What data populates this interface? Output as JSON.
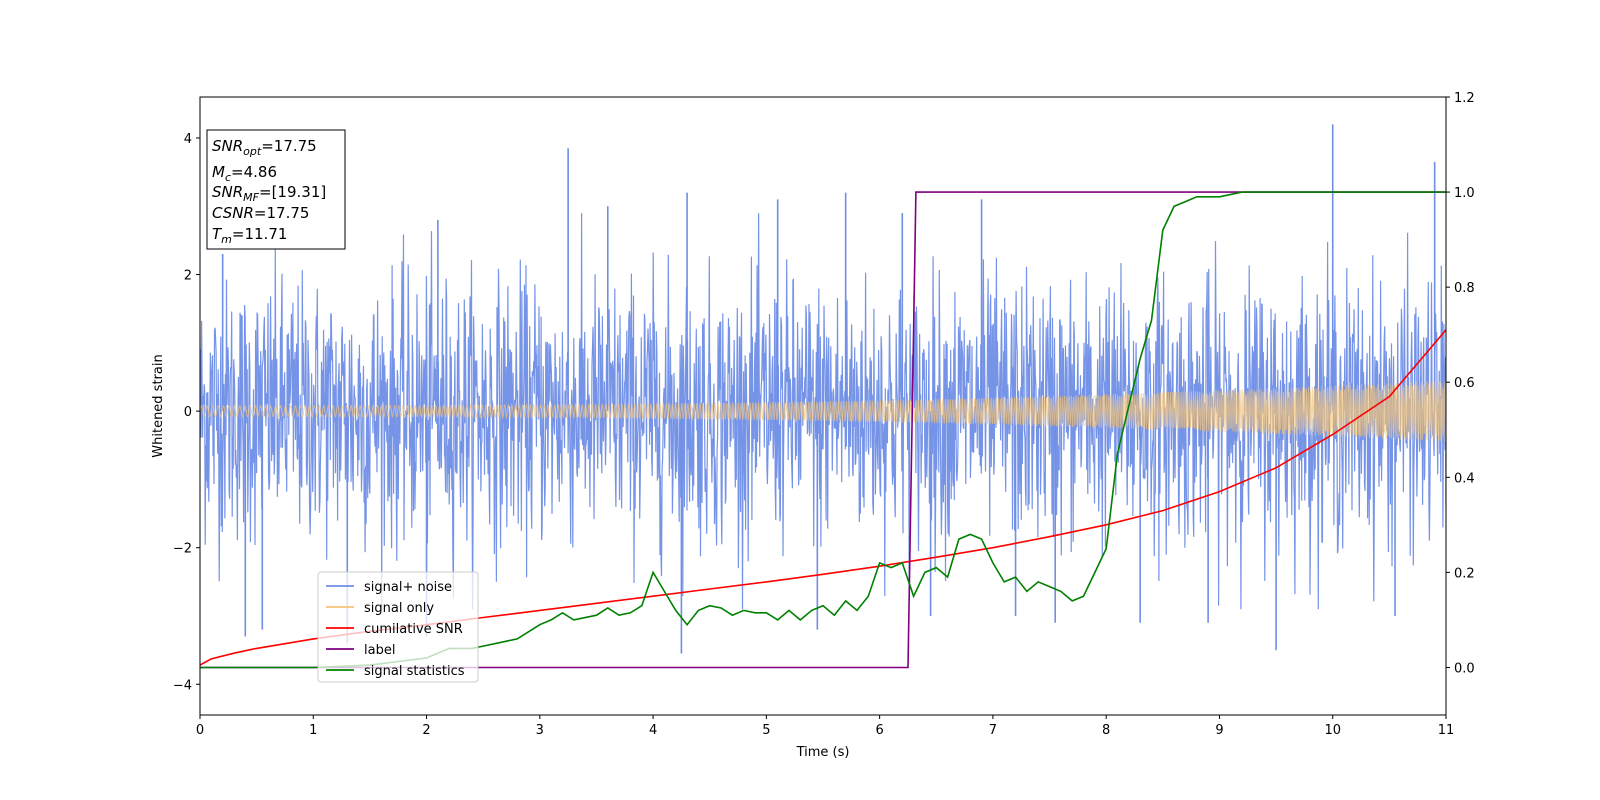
{
  "chart_data": {
    "type": "line",
    "xlabel": "Time (s)",
    "ylabel": "Whitened strain",
    "xlim": [
      0,
      11
    ],
    "ylim_left": [
      -4.45,
      4.6
    ],
    "ylim_right": [
      -0.1,
      1.2
    ],
    "x_ticks": [
      "0",
      "1",
      "2",
      "3",
      "4",
      "5",
      "6",
      "7",
      "8",
      "9",
      "10",
      "11"
    ],
    "y_left_ticks": [
      "−4",
      "−2",
      "0",
      "2",
      "4"
    ],
    "y_right_ticks": [
      "0.0",
      "0.2",
      "0.4",
      "0.6",
      "0.8",
      "1.0",
      "1.2"
    ],
    "info_box": {
      "snr_opt": {
        "base": "SNR",
        "sub": "opt",
        "value": "=17.75"
      },
      "mc": {
        "base": "M",
        "sub": "c",
        "value": "=4.86"
      },
      "snr_mf": {
        "base": "SNR",
        "sub": "MF",
        "value": "=[19.31]"
      },
      "csnr": {
        "base": "CSNR",
        "value": "=17.75"
      },
      "tm": {
        "base": "T",
        "sub": "m",
        "value": "=11.71"
      }
    },
    "legend": {
      "placement": "lower-left",
      "entries": [
        {
          "label": "signal+ noise",
          "color": "#6f8ee6"
        },
        {
          "label": "signal only",
          "color": "#f5c477"
        },
        {
          "label": "cumilative SNR",
          "color": "#ff0000"
        },
        {
          "label": "label",
          "color": "#800080"
        },
        {
          "label": "signal statistics",
          "color": "#008000"
        }
      ]
    },
    "series": [
      {
        "name": "signal+ noise",
        "axis": "left",
        "color": "#6f8ee6",
        "kind": "noise",
        "noise_sigma": 1.0,
        "spikes": [
          [
            0.2,
            2.3
          ],
          [
            0.4,
            -3.3
          ],
          [
            0.55,
            -3.2
          ],
          [
            1.3,
            -3.4
          ],
          [
            2.0,
            -3.3
          ],
          [
            2.1,
            2.8
          ],
          [
            3.25,
            3.85
          ],
          [
            3.6,
            3.0
          ],
          [
            4.25,
            -3.55
          ],
          [
            4.3,
            3.2
          ],
          [
            5.1,
            3.1
          ],
          [
            5.45,
            -3.2
          ],
          [
            5.7,
            3.2
          ],
          [
            6.2,
            2.9
          ],
          [
            6.45,
            -3.0
          ],
          [
            6.9,
            3.1
          ],
          [
            7.2,
            -3.0
          ],
          [
            7.55,
            -3.1
          ],
          [
            8.3,
            -3.1
          ],
          [
            8.9,
            -3.1
          ],
          [
            9.5,
            -3.5
          ],
          [
            10.0,
            4.2
          ],
          [
            10.55,
            -3.0
          ],
          [
            10.9,
            3.65
          ]
        ]
      },
      {
        "name": "signal only",
        "axis": "left",
        "color": "#f5c477",
        "kind": "chirp",
        "amplitude_start": 0.08,
        "amplitude_end": 0.45
      },
      {
        "name": "cumilative SNR",
        "axis": "right",
        "color": "#ff0000",
        "x": [
          0,
          0.1,
          0.3,
          0.5,
          1,
          1.5,
          2,
          2.5,
          3,
          3.5,
          4,
          4.5,
          5,
          5.5,
          6,
          6.5,
          7,
          7.5,
          8,
          8.5,
          9,
          9.5,
          10,
          10.5,
          11
        ],
        "y": [
          0.005,
          0.018,
          0.03,
          0.04,
          0.06,
          0.076,
          0.09,
          0.105,
          0.12,
          0.135,
          0.15,
          0.165,
          0.18,
          0.196,
          0.213,
          0.232,
          0.252,
          0.275,
          0.3,
          0.33,
          0.37,
          0.42,
          0.49,
          0.57,
          0.71
        ]
      },
      {
        "name": "label",
        "axis": "right",
        "color": "#800080",
        "x": [
          0,
          6.25,
          6.32,
          11
        ],
        "y": [
          0.0,
          0.0,
          1.0,
          1.0
        ]
      },
      {
        "name": "signal statistics",
        "axis": "right",
        "color": "#008000",
        "x": [
          0,
          0.5,
          1,
          1.5,
          2,
          2.2,
          2.3,
          2.4,
          2.5,
          2.7,
          2.8,
          3.0,
          3.1,
          3.2,
          3.3,
          3.5,
          3.6,
          3.7,
          3.8,
          3.9,
          4.0,
          4.1,
          4.2,
          4.3,
          4.4,
          4.5,
          4.6,
          4.7,
          4.8,
          4.9,
          5.0,
          5.1,
          5.2,
          5.3,
          5.4,
          5.5,
          5.6,
          5.7,
          5.8,
          5.9,
          6.0,
          6.1,
          6.2,
          6.3,
          6.4,
          6.5,
          6.6,
          6.7,
          6.8,
          6.9,
          7.0,
          7.1,
          7.2,
          7.3,
          7.4,
          7.5,
          7.6,
          7.7,
          7.8,
          7.9,
          8.0,
          8.1,
          8.2,
          8.3,
          8.4,
          8.5,
          8.6,
          8.7,
          8.8,
          9.0,
          9.2,
          9.5,
          10,
          10.5,
          11
        ],
        "y": [
          0.0,
          0.0,
          0.0,
          0.005,
          0.02,
          0.04,
          0.04,
          0.04,
          0.045,
          0.055,
          0.06,
          0.09,
          0.1,
          0.115,
          0.1,
          0.11,
          0.125,
          0.11,
          0.115,
          0.13,
          0.2,
          0.16,
          0.12,
          0.09,
          0.12,
          0.13,
          0.125,
          0.11,
          0.12,
          0.115,
          0.115,
          0.1,
          0.12,
          0.1,
          0.12,
          0.13,
          0.11,
          0.14,
          0.12,
          0.15,
          0.22,
          0.21,
          0.22,
          0.15,
          0.2,
          0.21,
          0.19,
          0.27,
          0.28,
          0.27,
          0.22,
          0.18,
          0.19,
          0.16,
          0.18,
          0.17,
          0.16,
          0.14,
          0.15,
          0.2,
          0.25,
          0.45,
          0.55,
          0.65,
          0.73,
          0.92,
          0.97,
          0.98,
          0.99,
          0.99,
          1.0,
          1.0,
          1.0,
          1.0,
          1.0
        ]
      }
    ]
  }
}
